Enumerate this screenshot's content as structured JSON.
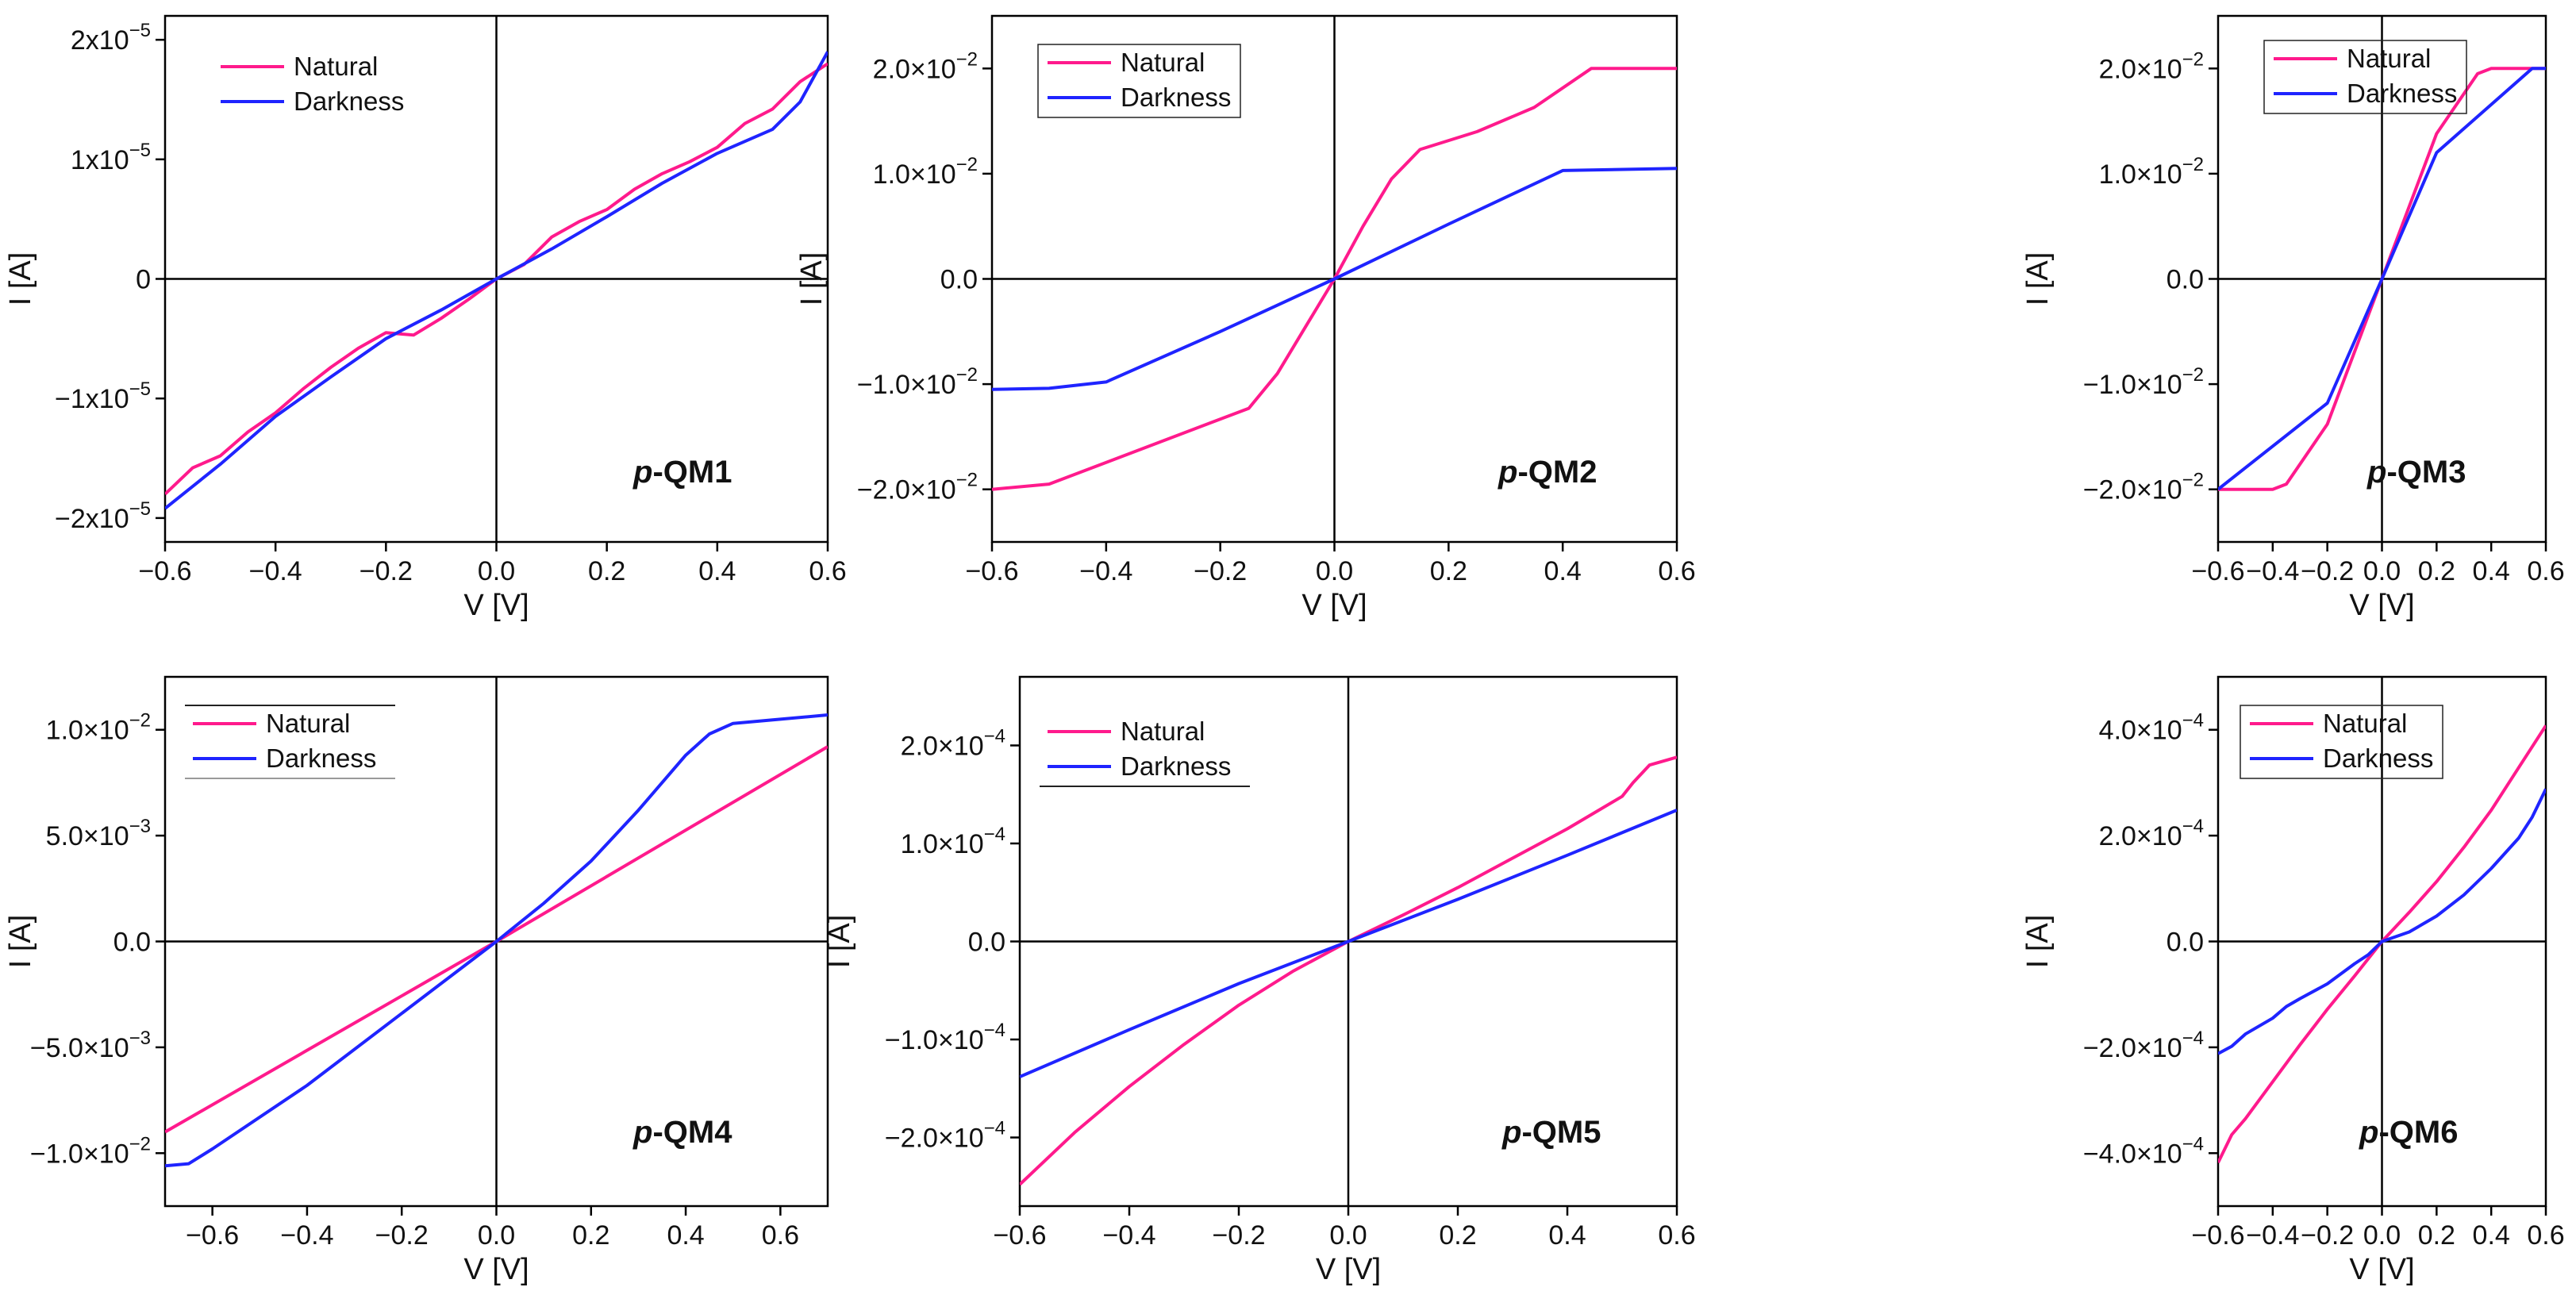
{
  "colors": {
    "natural": "#ff1a8c",
    "darkness": "#1f24ff",
    "axis": "#000000"
  },
  "chart_data": [
    {
      "type": "line",
      "tag_prefix": "p",
      "tag_suffix": "-QM1",
      "xlabel": "V [V]",
      "ylabel": "I [A]",
      "xlim": [
        -0.6,
        0.6
      ],
      "ylim": [
        -2.2e-05,
        2.2e-05
      ],
      "xticks": [
        -0.6,
        -0.4,
        -0.2,
        0,
        0.2,
        0.4,
        0.6
      ],
      "xtick_labels": [
        "-0.6",
        "-0.4",
        "-0.2",
        "0.0",
        "0.2",
        "0.4",
        "0.6"
      ],
      "yticks": [
        -2e-05,
        -1e-05,
        0,
        1e-05,
        2e-05
      ],
      "ytick_mant": [
        "-2x10",
        "-1x10",
        "0",
        "1x10",
        "2x10"
      ],
      "ytick_exp": [
        "-5",
        "-5",
        "",
        "-5",
        "-5"
      ],
      "legend": [
        "Natural",
        "Darkness"
      ],
      "legend_frame": "none",
      "series": [
        {
          "name": "Natural",
          "x": [
            -0.6,
            -0.55,
            -0.5,
            -0.45,
            -0.4,
            -0.35,
            -0.3,
            -0.25,
            -0.2,
            -0.15,
            -0.1,
            -0.05,
            0,
            0.05,
            0.1,
            0.15,
            0.2,
            0.25,
            0.3,
            0.35,
            0.4,
            0.45,
            0.5,
            0.55,
            0.6
          ],
          "y": [
            -1.8e-05,
            -1.58e-05,
            -1.48e-05,
            -1.28e-05,
            -1.12e-05,
            -9.2e-06,
            -7.4e-06,
            -5.8e-06,
            -4.5e-06,
            -4.7e-06,
            -3.3e-06,
            -1.7e-06,
            0,
            1.2e-06,
            3.5e-06,
            4.8e-06,
            5.8e-06,
            7.5e-06,
            8.8e-06,
            9.8e-06,
            1.1e-05,
            1.3e-05,
            1.42e-05,
            1.65e-05,
            1.8e-05
          ]
        },
        {
          "name": "Darkness",
          "x": [
            -0.6,
            -0.5,
            -0.4,
            -0.3,
            -0.2,
            -0.1,
            0,
            0.1,
            0.2,
            0.3,
            0.4,
            0.5,
            0.55,
            0.6
          ],
          "y": [
            -1.92e-05,
            -1.55e-05,
            -1.15e-05,
            -8.2e-06,
            -5e-06,
            -2.6e-06,
            0,
            2.5e-06,
            5.2e-06,
            8e-06,
            1.05e-05,
            1.25e-05,
            1.48e-05,
            1.9e-05
          ]
        }
      ]
    },
    {
      "type": "line",
      "tag_prefix": "p",
      "tag_suffix": "-QM2",
      "xlabel": "V [V]",
      "ylabel": "I [A]",
      "xlim": [
        -0.6,
        0.6
      ],
      "ylim": [
        -0.025,
        0.025
      ],
      "xticks": [
        -0.6,
        -0.4,
        -0.2,
        0,
        0.2,
        0.4,
        0.6
      ],
      "xtick_labels": [
        "-0.6",
        "-0.4",
        "-0.2",
        "0.0",
        "0.2",
        "0.4",
        "0.6"
      ],
      "yticks": [
        -0.02,
        -0.01,
        0,
        0.01,
        0.02
      ],
      "ytick_mant": [
        "-2.0×10",
        "-1.0×10",
        "0.0",
        "1.0×10",
        "2.0×10"
      ],
      "ytick_exp": [
        "-2",
        "-2",
        "",
        "-2",
        "-2"
      ],
      "legend": [
        "Natural",
        "Darkness"
      ],
      "legend_frame": "box",
      "series": [
        {
          "name": "Natural",
          "x": [
            -0.6,
            -0.5,
            -0.15,
            -0.1,
            -0.05,
            0,
            0.05,
            0.1,
            0.15,
            0.25,
            0.35,
            0.45,
            0.6
          ],
          "y": [
            -0.02,
            -0.0195,
            -0.0123,
            -0.009,
            -0.0045,
            0,
            0.005,
            0.0095,
            0.0123,
            0.014,
            0.0163,
            0.02,
            0.02
          ]
        },
        {
          "name": "Darkness",
          "x": [
            -0.6,
            -0.5,
            -0.4,
            -0.2,
            0,
            0.2,
            0.4,
            0.6
          ],
          "y": [
            -0.0105,
            -0.0104,
            -0.0098,
            -0.005,
            0,
            0.0052,
            0.0103,
            0.0105
          ]
        }
      ]
    },
    {
      "type": "line",
      "tag_prefix": "p",
      "tag_suffix": "-QM3",
      "xlabel": "V [V]",
      "ylabel": "I [A]",
      "xlim": [
        -0.6,
        0.6
      ],
      "ylim": [
        -0.025,
        0.025
      ],
      "xticks": [
        -0.6,
        -0.4,
        -0.2,
        0,
        0.2,
        0.4,
        0.6
      ],
      "xtick_labels": [
        "-0.6",
        "-0.4",
        "-0.2",
        "0.0",
        "0.2",
        "0.4",
        "0.6"
      ],
      "yticks": [
        -0.02,
        -0.01,
        0,
        0.01,
        0.02
      ],
      "ytick_mant": [
        "-2.0×10",
        "-1.0×10",
        "0.0",
        "1.0×10",
        "2.0×10"
      ],
      "ytick_exp": [
        "-2",
        "-2",
        "",
        "-2",
        "-2"
      ],
      "legend": [
        "Natural",
        "Darkness"
      ],
      "legend_frame": "box",
      "series": [
        {
          "name": "Natural",
          "x": [
            -0.6,
            -0.4,
            -0.35,
            -0.2,
            0,
            0.2,
            0.35,
            0.4,
            0.6
          ],
          "y": [
            -0.02,
            -0.02,
            -0.0195,
            -0.0138,
            0,
            0.0138,
            0.0195,
            0.02,
            0.02
          ]
        },
        {
          "name": "Darkness",
          "x": [
            -0.6,
            -0.2,
            0,
            0.2,
            0.55,
            0.6
          ],
          "y": [
            -0.02,
            -0.0118,
            0,
            0.012,
            0.02,
            0.02
          ]
        }
      ]
    },
    {
      "type": "line",
      "tag_prefix": "p",
      "tag_suffix": "-QM4",
      "xlabel": "V [V]",
      "ylabel": "I [A]",
      "xlim": [
        -0.7,
        0.7
      ],
      "ylim": [
        -0.0125,
        0.0125
      ],
      "xticks": [
        -0.6,
        -0.4,
        -0.2,
        0,
        0.2,
        0.4,
        0.6
      ],
      "xtick_labels": [
        "-0.6",
        "-0.4",
        "-0.2",
        "0.0",
        "0.2",
        "0.4",
        "0.6"
      ],
      "yticks": [
        -0.01,
        -0.005,
        0,
        0.005,
        0.01
      ],
      "ytick_mant": [
        "-1.0×10",
        "-5.0×10",
        "0.0",
        "5.0×10",
        "1.0×10"
      ],
      "ytick_exp": [
        "-2",
        "-3",
        "",
        "-3",
        "-2"
      ],
      "legend": [
        "Natural",
        "Darkness"
      ],
      "legend_frame": "lines",
      "series": [
        {
          "name": "Natural",
          "x": [
            -0.7,
            0,
            0.7
          ],
          "y": [
            -0.009,
            0,
            0.0092
          ]
        },
        {
          "name": "Darkness",
          "x": [
            -0.7,
            -0.65,
            -0.6,
            -0.4,
            -0.2,
            0,
            0.1,
            0.2,
            0.3,
            0.4,
            0.45,
            0.5,
            0.6,
            0.7
          ],
          "y": [
            -0.0106,
            -0.0105,
            -0.0098,
            -0.0068,
            -0.0034,
            0,
            0.0018,
            0.0038,
            0.0062,
            0.0088,
            0.0098,
            0.0103,
            0.0105,
            0.0107
          ]
        }
      ]
    },
    {
      "type": "line",
      "tag_prefix": "p",
      "tag_suffix": "-QM5",
      "xlabel": "V [V]",
      "ylabel": "I [A]",
      "xlim": [
        -0.6,
        0.6
      ],
      "ylim": [
        -0.00027,
        0.00027
      ],
      "xticks": [
        -0.6,
        -0.4,
        -0.2,
        0,
        0.2,
        0.4,
        0.6
      ],
      "xtick_labels": [
        "-0.6",
        "-0.4",
        "-0.2",
        "0.0",
        "0.2",
        "0.4",
        "0.6"
      ],
      "yticks": [
        -0.0002,
        -0.0001,
        0,
        0.0001,
        0.0002
      ],
      "ytick_mant": [
        "-2.0×10",
        "-1.0×10",
        "0.0",
        "1.0×10",
        "2.0×10"
      ],
      "ytick_exp": [
        "-4",
        "-4",
        "",
        "-4",
        "-4"
      ],
      "legend": [
        "Natural",
        "Darkness"
      ],
      "legend_frame": "underline",
      "series": [
        {
          "name": "Natural",
          "x": [
            -0.6,
            -0.5,
            -0.4,
            -0.3,
            -0.2,
            -0.1,
            0,
            0.1,
            0.2,
            0.3,
            0.4,
            0.5,
            0.52,
            0.55,
            0.6
          ],
          "y": [
            -0.000248,
            -0.000195,
            -0.000148,
            -0.000105,
            -6.5e-05,
            -3e-05,
            0,
            2.7e-05,
            5.5e-05,
            8.5e-05,
            0.000115,
            0.000148,
            0.000162,
            0.00018,
            0.000188
          ]
        },
        {
          "name": "Darkness",
          "x": [
            -0.6,
            -0.4,
            -0.2,
            0,
            0.2,
            0.4,
            0.6
          ],
          "y": [
            -0.000138,
            -9e-05,
            -4.3e-05,
            0,
            4.3e-05,
            8.8e-05,
            0.000134
          ]
        }
      ]
    },
    {
      "type": "line",
      "tag_prefix": "p",
      "tag_suffix": "-QM6",
      "xlabel": "V [V]",
      "ylabel": "I [A]",
      "xlim": [
        -0.6,
        0.6
      ],
      "ylim": [
        -0.0005,
        0.0005
      ],
      "xticks": [
        -0.6,
        -0.4,
        -0.2,
        0,
        0.2,
        0.4,
        0.6
      ],
      "xtick_labels": [
        "-0.6",
        "-0.4",
        "-0.2",
        "0.0",
        "0.2",
        "0.4",
        "0.6"
      ],
      "yticks": [
        -0.0004,
        -0.0002,
        0,
        0.0002,
        0.0004
      ],
      "ytick_mant": [
        "-4.0×10",
        "-2.0×10",
        "0.0",
        "2.0×10",
        "4.0×10"
      ],
      "ytick_exp": [
        "-4",
        "-4",
        "",
        "-4",
        "-4"
      ],
      "legend": [
        "Natural",
        "Darkness"
      ],
      "legend_frame": "box",
      "series": [
        {
          "name": "Natural",
          "x": [
            -0.6,
            -0.55,
            -0.5,
            -0.4,
            -0.3,
            -0.2,
            -0.1,
            0,
            0.1,
            0.2,
            0.3,
            0.4,
            0.5,
            0.6
          ],
          "y": [
            -0.000418,
            -0.000365,
            -0.000335,
            -0.000265,
            -0.000195,
            -0.000128,
            -6.5e-05,
            0,
            5.5e-05,
            0.000113,
            0.000178,
            0.000248,
            0.000328,
            0.000408
          ]
        },
        {
          "name": "Darkness",
          "x": [
            -0.6,
            -0.55,
            -0.5,
            -0.4,
            -0.35,
            -0.3,
            -0.2,
            -0.1,
            -0.05,
            0,
            0.1,
            0.2,
            0.3,
            0.4,
            0.5,
            0.55,
            0.6
          ],
          "y": [
            -0.000212,
            -0.000198,
            -0.000175,
            -0.000145,
            -0.000123,
            -0.000108,
            -8e-05,
            -4.2e-05,
            -2.5e-05,
            0,
            1.8e-05,
            4.8e-05,
            8.8e-05,
            0.000138,
            0.000195,
            0.000235,
            0.000288
          ]
        }
      ]
    }
  ]
}
